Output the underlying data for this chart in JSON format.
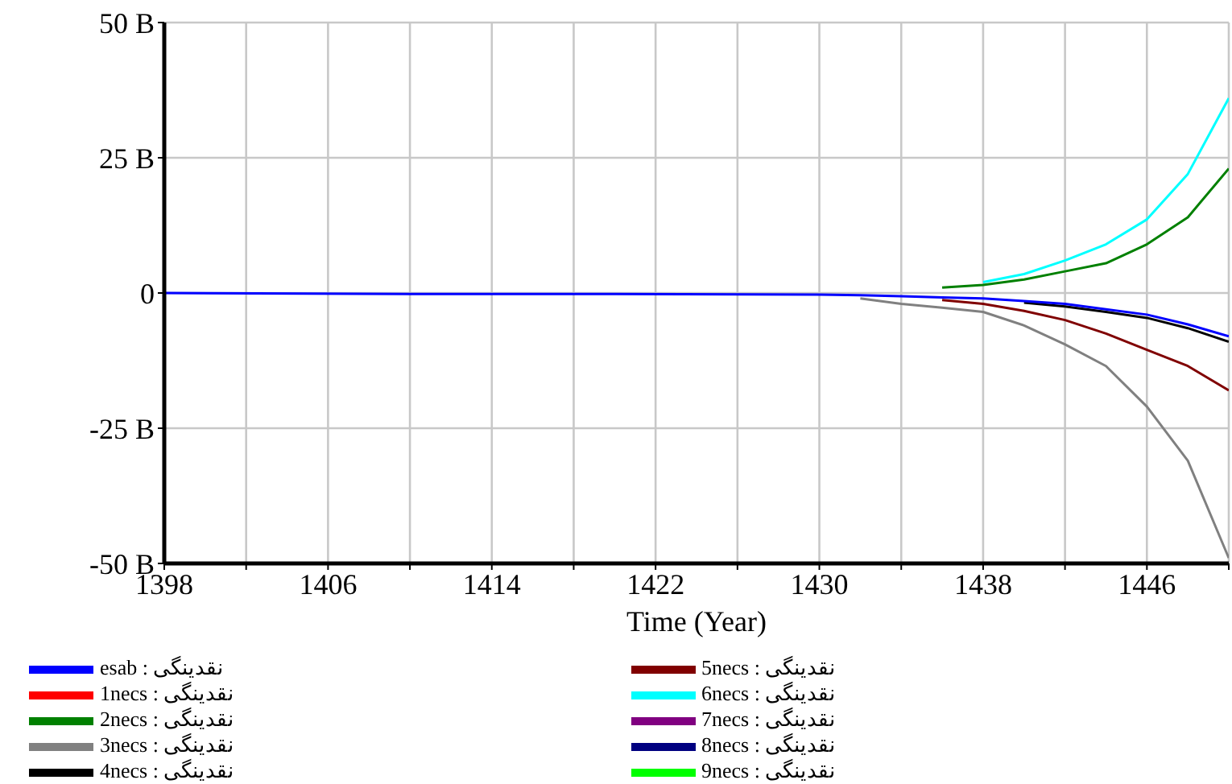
{
  "chart_data": {
    "type": "line",
    "xlabel": "Time (Year)",
    "x": [
      1398,
      1410,
      1420,
      1430,
      1432,
      1434,
      1436,
      1438,
      1440,
      1442,
      1444,
      1446,
      1448,
      1450
    ],
    "xlim": [
      1398,
      1450
    ],
    "xticks": [
      1398,
      {
        "value": 1402,
        "label": null
      },
      1406,
      {
        "value": 1410,
        "label": null
      },
      1414,
      {
        "value": 1418,
        "label": null
      },
      1422,
      {
        "value": 1426,
        "label": null
      },
      1430,
      {
        "value": 1434,
        "label": null
      },
      1438,
      {
        "value": 1442,
        "label": null
      },
      1446,
      {
        "value": 1450,
        "label": null
      }
    ],
    "ylim": [
      -50,
      50
    ],
    "yticks": [
      {
        "value": -50,
        "label": "-50 B"
      },
      {
        "value": -25,
        "label": "-25 B"
      },
      0,
      {
        "value": 25,
        "label": "25 B"
      },
      {
        "value": 50,
        "label": "50 B"
      }
    ],
    "grid": true,
    "legend": "bottom",
    "marker": "none",
    "line_style": "solid",
    "series": [
      {
        "name": "esab : نقدینگی",
        "color": "#0000ff",
        "values": [
          0,
          -0.2,
          -0.2,
          -0.3,
          -0.4,
          -0.6,
          -0.8,
          -1,
          -1.5,
          -2,
          -3,
          -4,
          -5.8,
          -8
        ]
      },
      {
        "name": "1necs : نقدینگی",
        "color": "#ff0000",
        "values": [
          null,
          null,
          null,
          null,
          null,
          null,
          null,
          null,
          null,
          null,
          null,
          null,
          null,
          null
        ]
      },
      {
        "name": "2necs : نقدینگی",
        "color": "#008000",
        "x": [
          1436,
          1438,
          1440,
          1442,
          1444,
          1446,
          1448,
          1450
        ],
        "values": [
          1,
          1.5,
          2.5,
          4,
          5.5,
          9,
          14,
          23
        ]
      },
      {
        "name": "3necs : نقدینگی",
        "color": "#808080",
        "x": [
          1432,
          1434,
          1436,
          1438,
          1440,
          1442,
          1444,
          1446,
          1448,
          1450
        ],
        "values": [
          -1,
          -2,
          -2.7,
          -3.5,
          -6,
          -9.5,
          -13.5,
          -21,
          -31,
          -49
        ]
      },
      {
        "name": "4necs : نقدینگی",
        "color": "#000000",
        "x": [
          1440,
          1442,
          1444,
          1446,
          1448,
          1450
        ],
        "values": [
          -1.8,
          -2.5,
          -3.5,
          -4.6,
          -6.5,
          -9
        ]
      },
      {
        "name": "5necs : نقدینگی",
        "color": "#800000",
        "x": [
          1436,
          1438,
          1440,
          1442,
          1444,
          1446,
          1448,
          1450
        ],
        "values": [
          -1.3,
          -2,
          -3.3,
          -5,
          -7.5,
          -10.5,
          -13.5,
          -18
        ]
      },
      {
        "name": "6necs : نقدینگی",
        "color": "#00ffff",
        "x": [
          1438,
          1440,
          1442,
          1444,
          1446,
          1448,
          1450
        ],
        "values": [
          2,
          3.5,
          6,
          9,
          13.6,
          22,
          36
        ]
      },
      {
        "name": "7necs : نقدینگی",
        "color": "#800080",
        "values": [
          null,
          null,
          null,
          null,
          null,
          null,
          null,
          null,
          null,
          null,
          null,
          null,
          null,
          null
        ]
      },
      {
        "name": "8necs : نقدینگی",
        "color": "#000080",
        "values": [
          null,
          null,
          null,
          null,
          null,
          null,
          null,
          null,
          null,
          null,
          null,
          null,
          null,
          null
        ]
      },
      {
        "name": "9necs : نقدینگی",
        "color": "#00ff00",
        "values": [
          null,
          null,
          null,
          null,
          null,
          null,
          null,
          null,
          null,
          null,
          null,
          null,
          null,
          null
        ]
      }
    ]
  }
}
